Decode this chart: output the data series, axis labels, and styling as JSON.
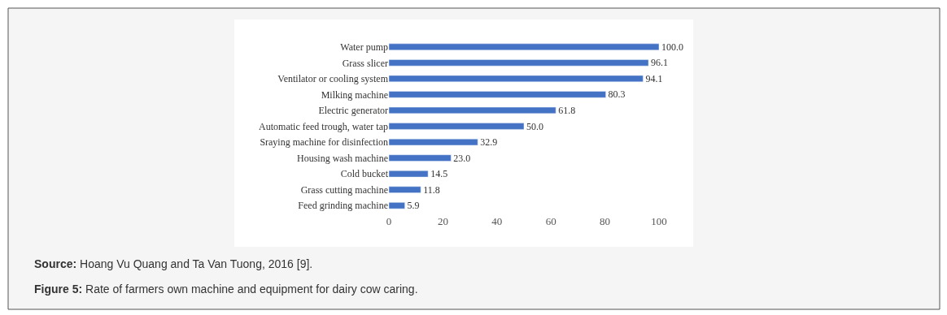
{
  "chart_data": {
    "type": "bar",
    "orientation": "horizontal",
    "categories": [
      "Water pump",
      "Grass slicer",
      "Ventilator or cooling system",
      "Milking machine",
      "Electric generator",
      "Automatic feed trough, water tap",
      "Sraying machine for disinfection",
      "Housing wash machine",
      "Cold bucket",
      "Grass cutting machine",
      "Feed grinding machine"
    ],
    "values": [
      100.0,
      96.1,
      94.1,
      80.3,
      61.8,
      50.0,
      32.9,
      23.0,
      14.5,
      11.8,
      5.9
    ],
    "value_labels": [
      "100.0",
      "96.1",
      "94.1",
      "80.3",
      "61.8",
      "50.0",
      "32.9",
      "23.0",
      "14.5",
      "11.8",
      "5.9"
    ],
    "color": "#4472c4",
    "xlim": [
      0,
      100
    ],
    "xticks": [
      0,
      20,
      40,
      60,
      80,
      100
    ],
    "annotations": [
      "Source: Hoang Vu Quang and Ta Van Tuong, 2016 [9].",
      "Figure 5: Rate of farmers own machine and equipment for dairy cow caring."
    ]
  }
}
